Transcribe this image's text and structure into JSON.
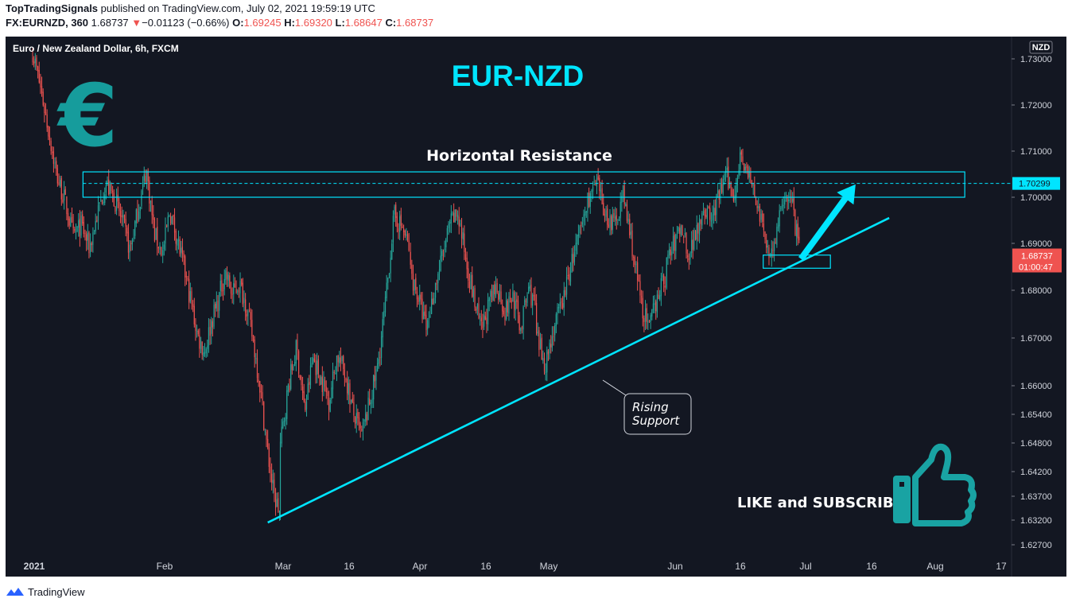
{
  "header": {
    "publisher": "TopTradingSignals",
    "published_text": " published on TradingView.com, July 02, 2021 19:59:19 UTC",
    "symbol": "FX:EURNZD, 360",
    "last": "1.68737",
    "change_arrow": "▼",
    "change": "−0.01123 (−0.66%)",
    "o_label": "O:",
    "o_value": "1.69245",
    "h_label": "H:",
    "h_value": "1.69320",
    "l_label": "L:",
    "l_value": "1.68647",
    "c_label": "C:",
    "c_value": "1.68737"
  },
  "footer": {
    "brand": "TradingView",
    "logo_icon": "tradingview-logo-icon"
  },
  "colors": {
    "background": "#131722",
    "up": "#26a69a",
    "down": "#ef5350",
    "accent": "#00e5ff",
    "logo": "#169c9c",
    "text": "#d1d4dc"
  },
  "chart_data": {
    "type": "candlestick",
    "title": "Euro / New Zealand Dollar, 6h, FXCM",
    "currency_badge": "NZD",
    "overlay_title": "EUR-NZD",
    "y_ticks": [
      "1.73000",
      "1.72000",
      "1.71000",
      "1.70000",
      "1.69000",
      "1.68000",
      "1.67000",
      "1.66000",
      "1.65400",
      "1.64800",
      "1.64200",
      "1.63700",
      "1.63200",
      "1.62700"
    ],
    "x_ticks": [
      "2021",
      "Feb",
      "Mar",
      "16",
      "Apr",
      "16",
      "May",
      "Jun",
      "16",
      "Jul",
      "16",
      "Aug",
      "17"
    ],
    "ylim": [
      1.627,
      1.733
    ],
    "grid": false,
    "last_price": "1.68737",
    "countdown": "01:00:47",
    "resistance_price_label": "1.70299",
    "resistance_zone": {
      "low": 1.7,
      "high": 1.7055,
      "mid": 1.70299,
      "from": "Jan 13",
      "to": "Aug 11"
    },
    "support_zone": {
      "low": 1.6847,
      "high": 1.6875,
      "from": "Jun 24",
      "to": "Jul 10"
    },
    "support_line": {
      "from": {
        "date": "Feb 26",
        "price": 1.6315
      },
      "to": {
        "date": "Jul 24",
        "price": 1.6955
      }
    },
    "arrow": {
      "from": {
        "date": "Jul 3",
        "price": 1.6867
      },
      "to": {
        "date": "Jul 16",
        "price": 1.7028
      }
    },
    "annotations": {
      "resistance_label": "Horizontal Resistance",
      "support_label_1": "Rising",
      "support_label_2": "Support",
      "cta": "LIKE and SUBSCRIBE",
      "euro_symbol": "€",
      "thumb_icon": "thumbs-up-icon"
    },
    "series": [
      {
        "name": "Jan",
        "x_start": "Jan 1",
        "x_end": "Jan 31",
        "ohlc_path": [
          [
            1.73,
            1.733
          ],
          [
            1.722,
            1.725
          ],
          [
            1.712,
            1.716
          ],
          [
            1.703,
            1.706
          ],
          [
            1.698,
            1.7
          ],
          [
            1.69,
            1.693
          ],
          [
            1.692,
            1.696
          ],
          [
            1.688,
            1.69
          ],
          [
            1.695,
            1.698
          ],
          [
            1.7,
            1.706
          ],
          [
            1.698,
            1.702
          ],
          [
            1.693,
            1.697
          ],
          [
            1.687,
            1.69
          ],
          [
            1.695,
            1.7
          ],
          [
            1.704,
            1.708
          ],
          [
            1.69,
            1.694
          ],
          [
            1.686,
            1.69
          ]
        ]
      },
      {
        "name": "Feb",
        "x_start": "Feb 1",
        "x_end": "Feb 28",
        "ohlc_path": [
          [
            1.686,
            1.69
          ],
          [
            1.694,
            1.7
          ],
          [
            1.69,
            1.693
          ],
          [
            1.683,
            1.687
          ],
          [
            1.676,
            1.68
          ],
          [
            1.669,
            1.672
          ],
          [
            1.665,
            1.669
          ],
          [
            1.672,
            1.675
          ],
          [
            1.676,
            1.68
          ],
          [
            1.682,
            1.686
          ],
          [
            1.677,
            1.681
          ],
          [
            1.68,
            1.683
          ],
          [
            1.676,
            1.678
          ],
          [
            1.668,
            1.671
          ],
          [
            1.658,
            1.662
          ],
          [
            1.645,
            1.649
          ],
          [
            1.635,
            1.639
          ],
          [
            1.632,
            1.634
          ]
        ]
      },
      {
        "name": "Mar",
        "x_start": "Mar 1",
        "x_end": "Mar 31",
        "ohlc_path": [
          [
            1.645,
            1.65
          ],
          [
            1.658,
            1.662
          ],
          [
            1.666,
            1.67
          ],
          [
            1.652,
            1.657
          ],
          [
            1.664,
            1.668
          ],
          [
            1.66,
            1.663
          ],
          [
            1.655,
            1.659
          ],
          [
            1.665,
            1.668
          ],
          [
            1.661,
            1.664
          ],
          [
            1.652,
            1.656
          ],
          [
            1.648,
            1.651
          ],
          [
            1.654,
            1.659
          ],
          [
            1.662,
            1.666
          ],
          [
            1.676,
            1.68
          ],
          [
            1.694,
            1.698
          ],
          [
            1.692,
            1.695
          ],
          [
            1.686,
            1.69
          ]
        ]
      },
      {
        "name": "Apr",
        "x_start": "Apr 1",
        "x_end": "Apr 30",
        "ohlc_path": [
          [
            1.682,
            1.686
          ],
          [
            1.677,
            1.68
          ],
          [
            1.67,
            1.674
          ],
          [
            1.678,
            1.682
          ],
          [
            1.685,
            1.689
          ],
          [
            1.692,
            1.696
          ],
          [
            1.695,
            1.698
          ],
          [
            1.685,
            1.689
          ],
          [
            1.677,
            1.68
          ],
          [
            1.67,
            1.673
          ],
          [
            1.675,
            1.679
          ],
          [
            1.679,
            1.683
          ],
          [
            1.674,
            1.677
          ],
          [
            1.677,
            1.681
          ],
          [
            1.67,
            1.674
          ],
          [
            1.679,
            1.682
          ],
          [
            1.674,
            1.678
          ]
        ]
      },
      {
        "name": "May",
        "x_start": "May 1",
        "x_end": "May 31",
        "ohlc_path": [
          [
            1.668,
            1.672
          ],
          [
            1.663,
            1.666
          ],
          [
            1.67,
            1.674
          ],
          [
            1.676,
            1.679
          ],
          [
            1.683,
            1.688
          ],
          [
            1.69,
            1.694
          ],
          [
            1.698,
            1.702
          ],
          [
            1.701,
            1.704
          ],
          [
            1.694,
            1.698
          ],
          [
            1.692,
            1.696
          ],
          [
            1.699,
            1.702
          ],
          [
            1.688,
            1.692
          ],
          [
            1.676,
            1.68
          ],
          [
            1.67,
            1.673
          ],
          [
            1.677,
            1.682
          ],
          [
            1.681,
            1.685
          ]
        ]
      },
      {
        "name": "Jun",
        "x_start": "Jun 1",
        "x_end": "Jun 30",
        "ohlc_path": [
          [
            1.684,
            1.688
          ],
          [
            1.688,
            1.692
          ],
          [
            1.692,
            1.696
          ],
          [
            1.686,
            1.689
          ],
          [
            1.691,
            1.695
          ],
          [
            1.696,
            1.7
          ],
          [
            1.693,
            1.697
          ],
          [
            1.698,
            1.702
          ],
          [
            1.703,
            1.707
          ],
          [
            1.698,
            1.702
          ],
          [
            1.708,
            1.712
          ],
          [
            1.703,
            1.706
          ],
          [
            1.698,
            1.702
          ],
          [
            1.691,
            1.694
          ],
          [
            1.686,
            1.689
          ],
          [
            1.691,
            1.695
          ],
          [
            1.699,
            1.704
          ],
          [
            1.696,
            1.7
          ]
        ]
      },
      {
        "name": "Jul",
        "x_start": "Jul 1",
        "x_end": "Jul 2",
        "ohlc_path": [
          [
            1.695,
            1.7
          ],
          [
            1.69,
            1.694
          ],
          [
            1.686,
            1.689
          ]
        ]
      }
    ]
  }
}
